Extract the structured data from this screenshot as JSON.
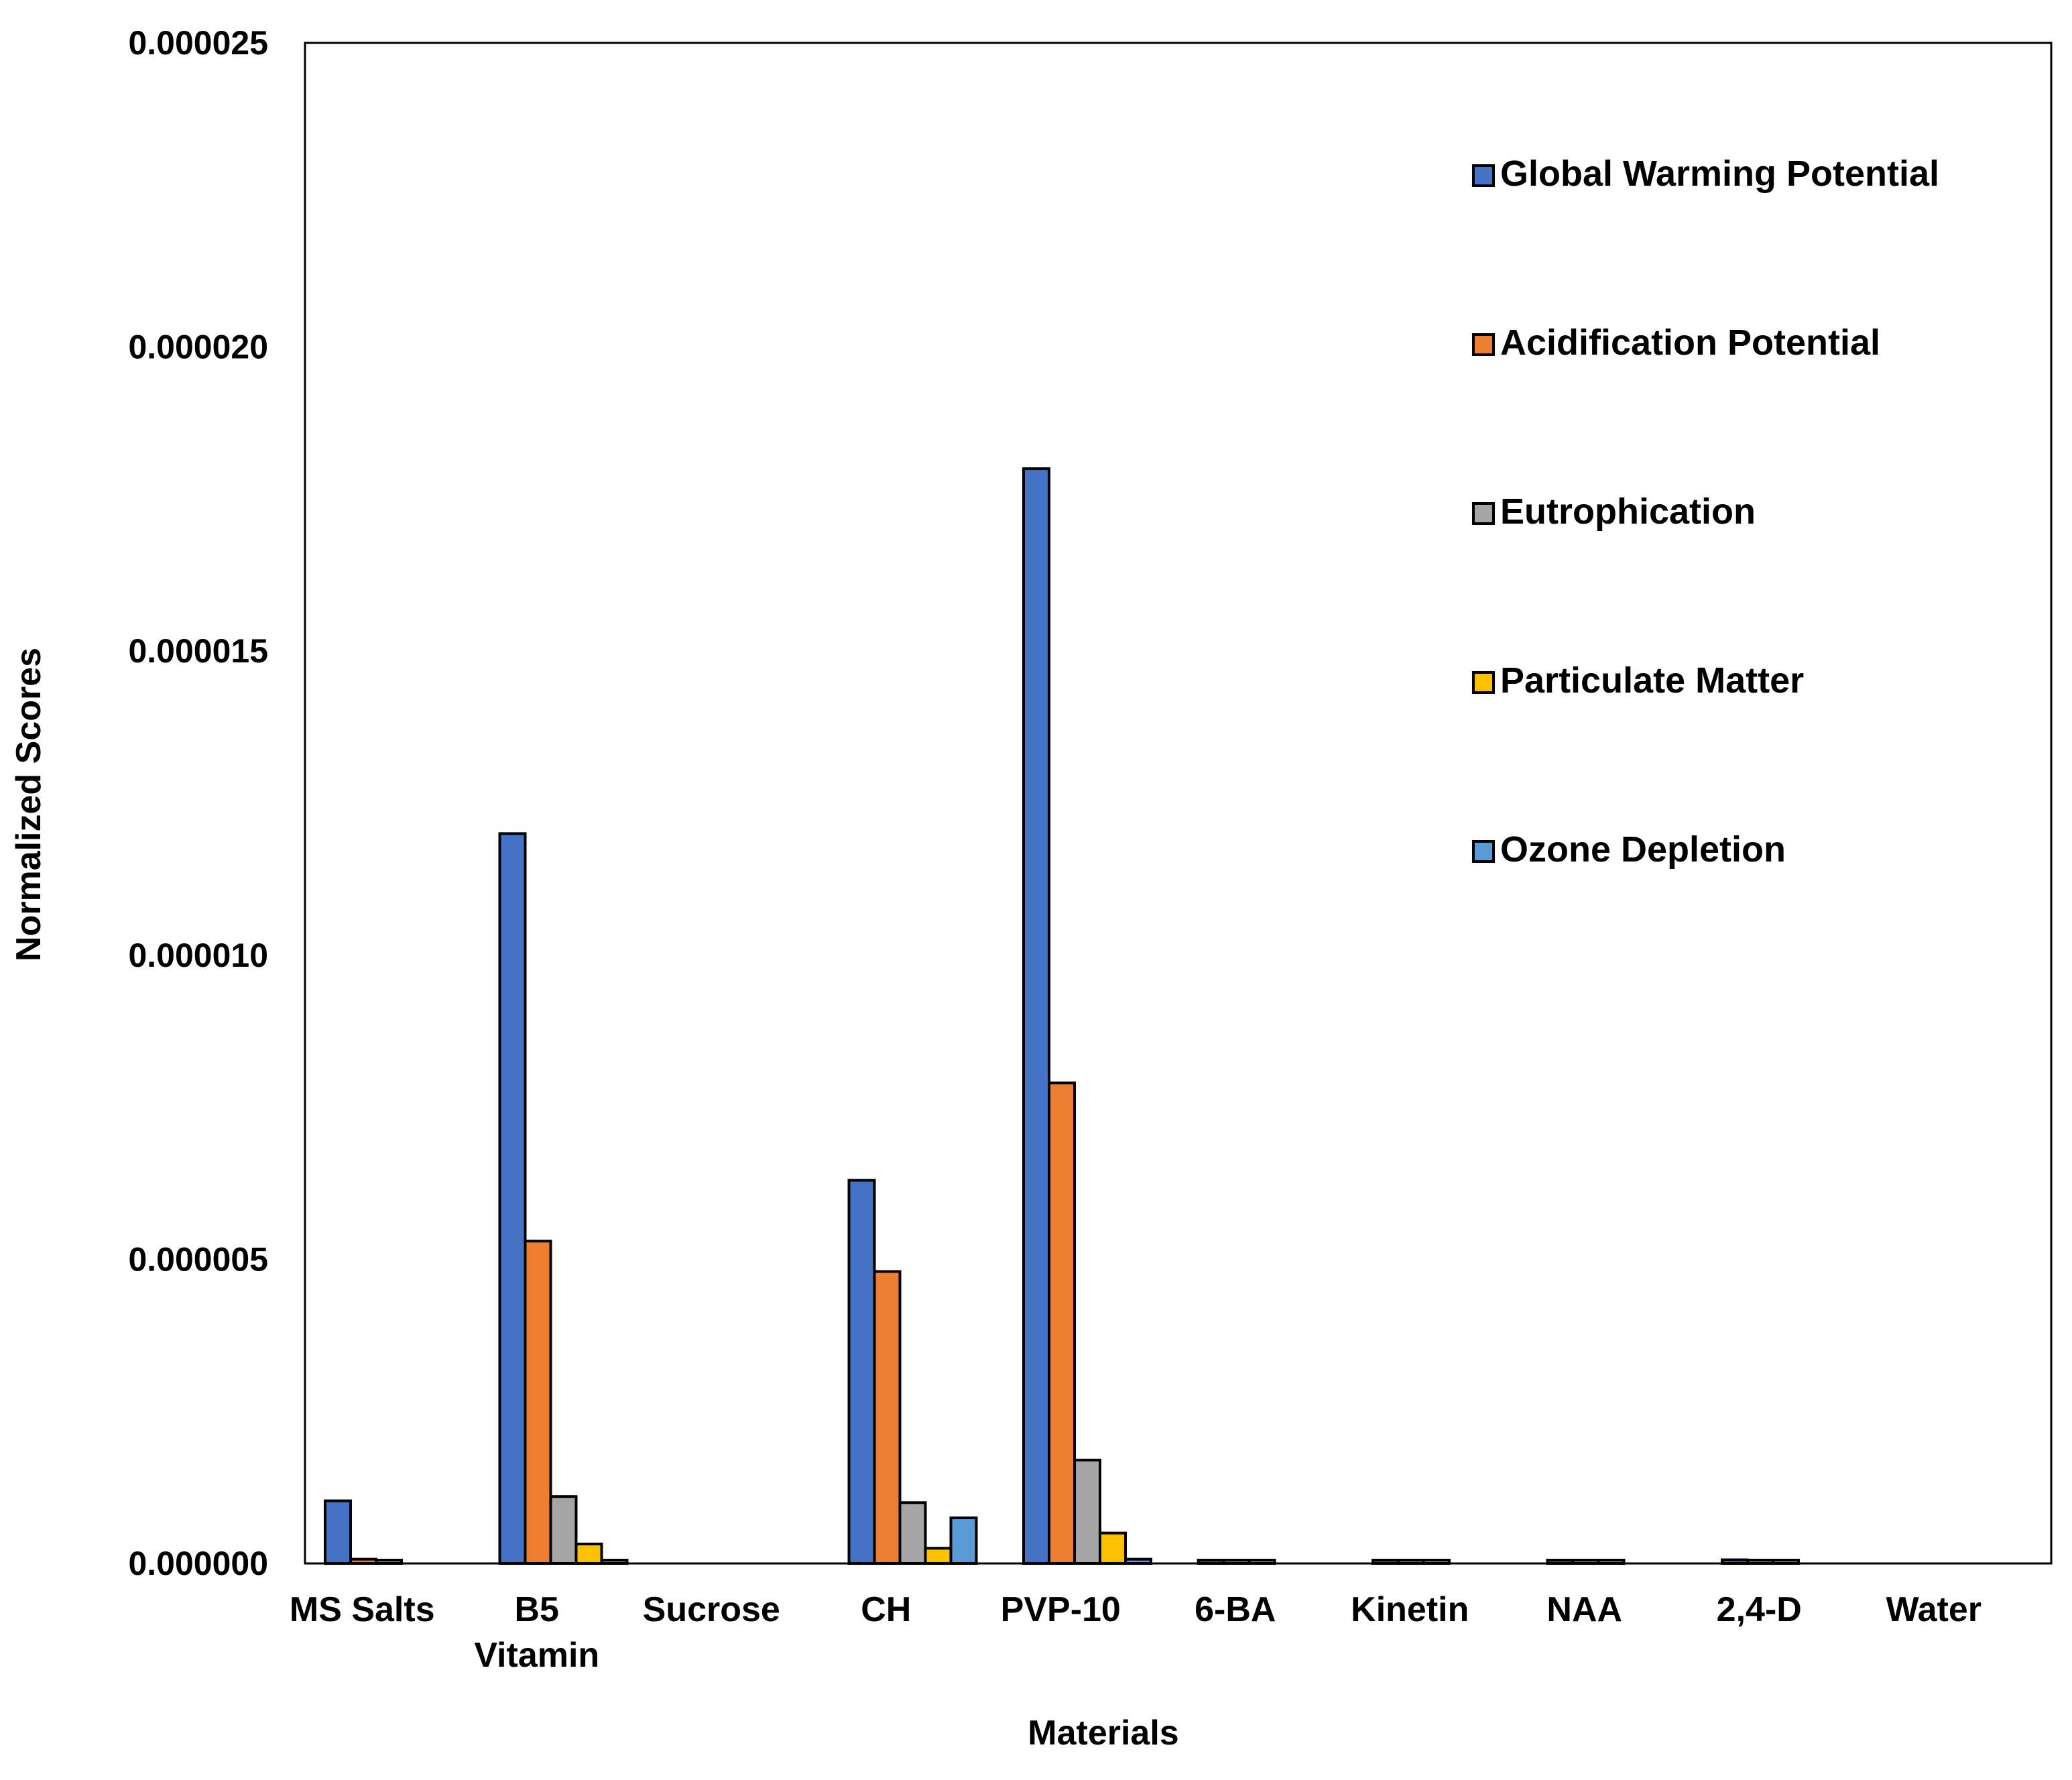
{
  "chart_data": {
    "type": "bar",
    "title": "",
    "xlabel": "Materials",
    "ylabel": "Normalized Scores",
    "ylim": [
      0,
      2.5e-05
    ],
    "yticks": [
      "0.000000",
      "0.000005",
      "0.000010",
      "0.000015",
      "0.000020",
      "0.000025"
    ],
    "legend_position": "top-right",
    "categories": [
      [
        "MS Salts"
      ],
      [
        "B5",
        "Vitamin"
      ],
      [
        "Sucrose"
      ],
      [
        "CH"
      ],
      [
        "PVP-10"
      ],
      [
        "6-BA"
      ],
      [
        "Kinetin"
      ],
      [
        "NAA"
      ],
      [
        "2,4-D"
      ],
      [
        "Water"
      ]
    ],
    "series": [
      {
        "name": "Global Warming Potential",
        "color": "#4472C4",
        "values": [
          1.03e-06,
          1.2e-05,
          0.0,
          6.3e-06,
          1.8e-05,
          2e-08,
          2e-08,
          2e-08,
          6e-08,
          0.0
        ]
      },
      {
        "name": "Acidification Potential",
        "color": "#ED7D31",
        "values": [
          7e-08,
          5.3e-06,
          0.0,
          4.8e-06,
          7.9e-06,
          1e-08,
          1e-08,
          1e-08,
          2e-08,
          0.0
        ]
      },
      {
        "name": "Eutrophication",
        "color": "#A5A5A5",
        "values": [
          2e-08,
          1.1e-06,
          0.0,
          1e-06,
          1.7e-06,
          1e-08,
          1e-08,
          1e-08,
          1e-08,
          0.0
        ]
      },
      {
        "name": "Particulate Matter",
        "color": "#FFC000",
        "values": [
          0.0,
          3.2e-07,
          0.0,
          2.5e-07,
          5e-07,
          0.0,
          0.0,
          0.0,
          0.0,
          0.0
        ]
      },
      {
        "name": "Ozone Depletion",
        "color": "#5B9BD5",
        "values": [
          0.0,
          4e-08,
          0.0,
          7.5e-07,
          7e-08,
          0.0,
          0.0,
          0.0,
          0.0,
          0.0
        ]
      }
    ]
  }
}
